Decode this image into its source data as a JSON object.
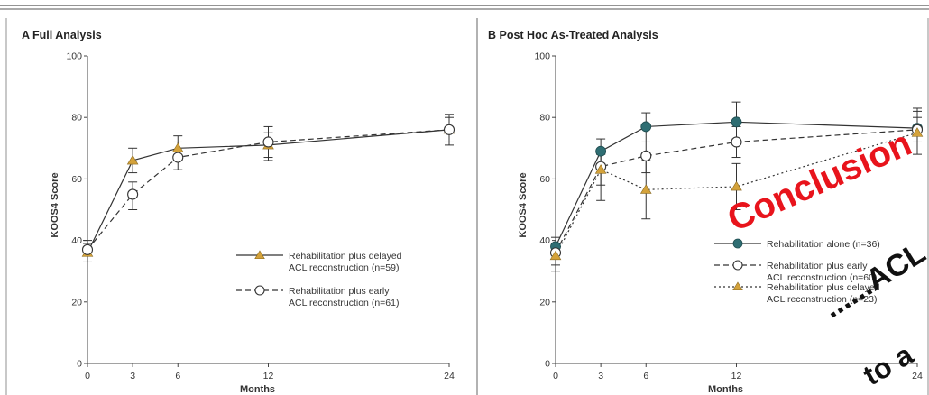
{
  "chart_data": [
    {
      "type": "line",
      "title": "A  Full Analysis",
      "xlabel": "Months",
      "ylabel": "KOOS4 Score",
      "x": [
        0,
        3,
        6,
        12,
        24
      ],
      "xticks": [
        "0",
        "3",
        "6",
        "12",
        "24"
      ],
      "yticks": [
        "0",
        "20",
        "40",
        "60",
        "80",
        "100"
      ],
      "xlim": [
        0,
        24
      ],
      "ylim": [
        0,
        100
      ],
      "legend_position": "bottom-right",
      "series": [
        {
          "legend_line1": "Rehabilitation plus delayed",
          "legend_line2": "ACL reconstruction (n=59)",
          "marker": "filled-triangle",
          "line_style": "solid",
          "color": "#d4a23a",
          "values": [
            36,
            66,
            70,
            71,
            76
          ],
          "err_low": [
            33,
            62,
            66,
            66,
            71
          ],
          "err_high": [
            39,
            70,
            74,
            75,
            81
          ]
        },
        {
          "legend_line1": "Rehabilitation plus early",
          "legend_line2": "ACL reconstruction (n=61)",
          "marker": "open-circle",
          "line_style": "dashed",
          "color": "#ffffff",
          "values": [
            37,
            55,
            67,
            72,
            76
          ],
          "err_low": [
            33,
            50,
            63,
            67,
            72
          ],
          "err_high": [
            40,
            59,
            72,
            77,
            80
          ]
        }
      ]
    },
    {
      "type": "line",
      "title": "B  Post Hoc As-Treated Analysis",
      "xlabel": "Months",
      "ylabel": "KOOS4 Score",
      "x": [
        0,
        3,
        6,
        12,
        24
      ],
      "xticks": [
        "0",
        "3",
        "6",
        "12",
        "24"
      ],
      "yticks": [
        "0",
        "20",
        "40",
        "60",
        "80",
        "100"
      ],
      "xlim": [
        0,
        24
      ],
      "ylim": [
        0,
        100
      ],
      "legend_position": "bottom-right",
      "series": [
        {
          "legend_line1": "Rehabilitation alone (n=36)",
          "legend_line2": "",
          "marker": "filled-circle",
          "line_style": "solid",
          "color": "#2f6e73",
          "values": [
            38,
            69,
            77,
            78.5,
            76.5
          ],
          "err_low": [
            34,
            65,
            72,
            73,
            72
          ],
          "err_high": [
            41,
            73,
            81.5,
            85,
            83
          ]
        },
        {
          "legend_line1": "Rehabilitation plus early",
          "legend_line2": "ACL reconstruction (n=60)",
          "marker": "open-circle",
          "line_style": "dashed",
          "color": "#ffffff",
          "values": [
            36,
            64,
            67.5,
            72,
            76
          ],
          "err_low": [
            32,
            58,
            62,
            67,
            72
          ],
          "err_high": [
            39,
            68,
            72,
            77,
            80
          ]
        },
        {
          "legend_line1": "Rehabilitation plus delayed",
          "legend_line2": "ACL reconstruction (n=23)",
          "marker": "filled-triangle",
          "line_style": "dotted",
          "color": "#d4a23a",
          "values": [
            35,
            63,
            56.5,
            57.5,
            75
          ],
          "err_low": [
            30,
            53,
            47,
            50,
            68
          ],
          "err_high": [
            39,
            68,
            66,
            65,
            82
          ]
        }
      ]
    }
  ],
  "overlay": {
    "word1": "Conclusion",
    "word1_color": "#e8141c",
    "word2": "......ACL",
    "word3": "to a",
    "word23_color": "#111111"
  }
}
